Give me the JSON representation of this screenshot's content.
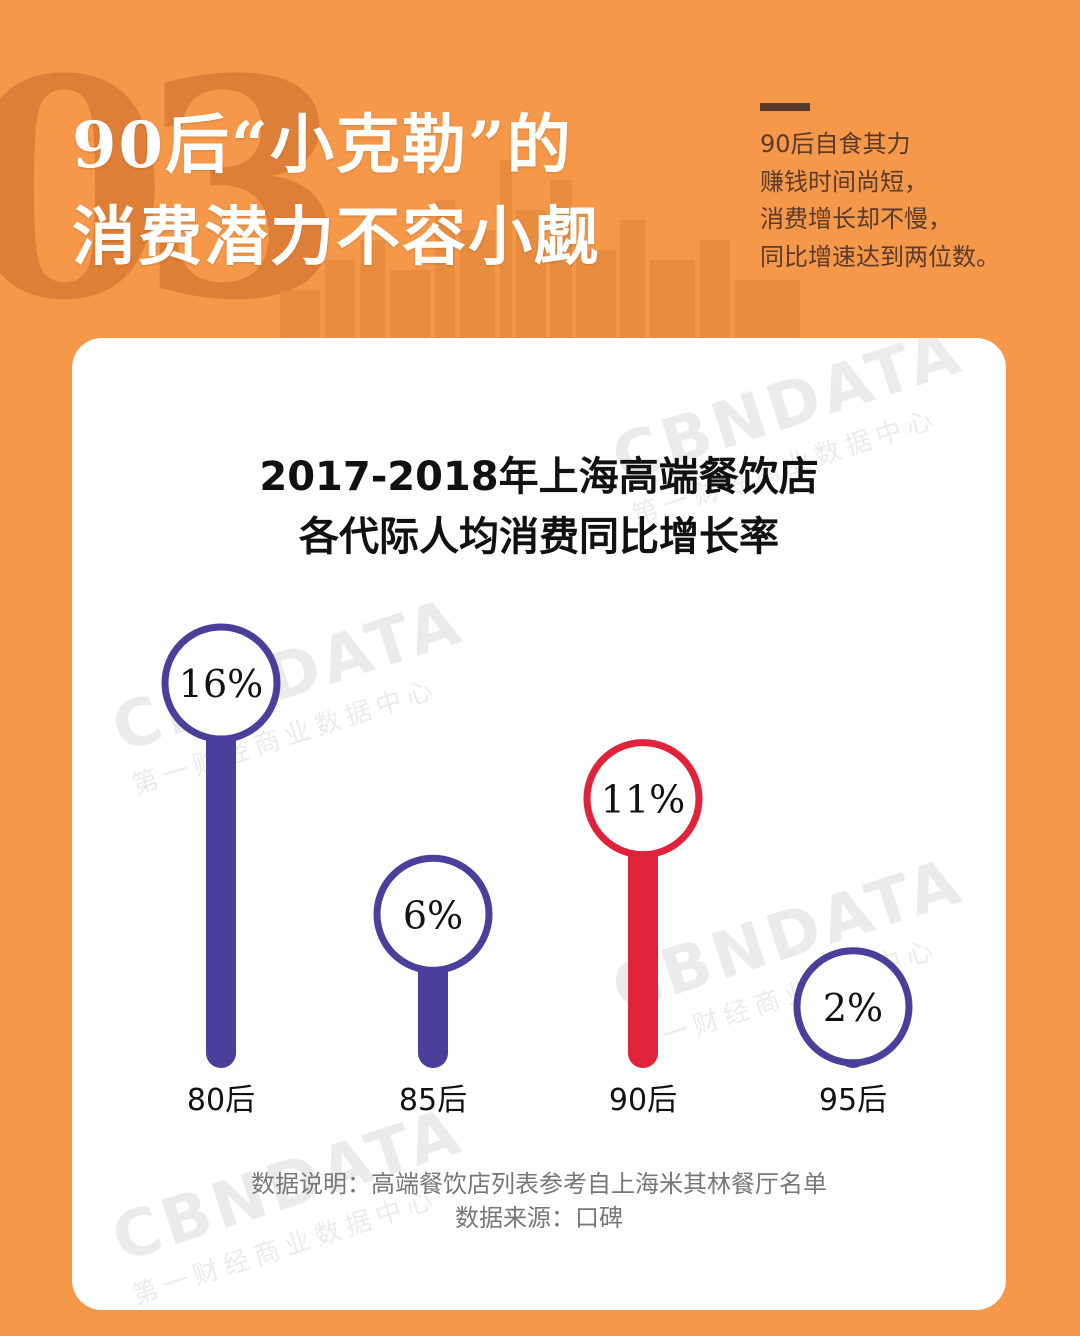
{
  "background_number": "03",
  "headline": {
    "line1": "90后“小克勒”的",
    "line2": "消费潜力不容小觑"
  },
  "side_note": [
    "90后自食其力",
    "赚钱时间尚短，",
    "消费增长却不慢，",
    "同比增速达到两位数。"
  ],
  "watermark": {
    "brand": "CBNDATA",
    "subtitle": "第一财经商业数据中心"
  },
  "chart_data": {
    "type": "bar",
    "title": "2017-2018年上海高端餐饮店",
    "subtitle": "各代际人均消费同比增长率",
    "categories": [
      "80后",
      "85后",
      "90后",
      "95后"
    ],
    "values": [
      16,
      6,
      11,
      2
    ],
    "value_labels": [
      "16%",
      "6%",
      "11%",
      "2%"
    ],
    "highlight_index": 2,
    "unit": "%",
    "colors": {
      "default": "#4a3f9a",
      "highlight": "#e0223a"
    }
  },
  "footnotes": {
    "note": "数据说明：高端餐饮店列表参考自上海米其林餐厅名单",
    "source": "数据来源：口碑"
  }
}
